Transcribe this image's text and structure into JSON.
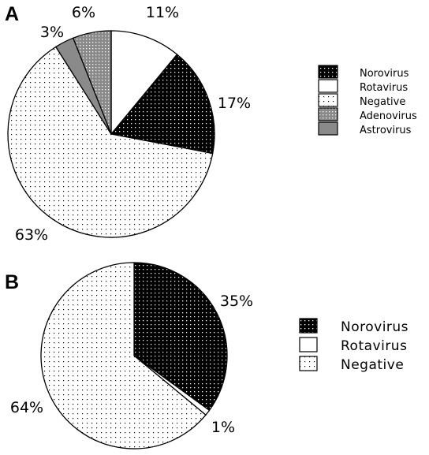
{
  "chart_data": [
    {
      "type": "pie",
      "panel": "A",
      "slices": [
        {
          "label": "Rotavirus",
          "value": 11,
          "text": "11%",
          "fill": "white"
        },
        {
          "label": "Norovirus",
          "value": 17,
          "text": "17%",
          "fill": "dots-black"
        },
        {
          "label": "Negative",
          "value": 63,
          "text": "63%",
          "fill": "dots-light"
        },
        {
          "label": "Astrovirus",
          "value": 3,
          "text": "3%",
          "fill": "solid-gray"
        },
        {
          "label": "Adenovirus",
          "value": 6,
          "text": "6%",
          "fill": "dots-gray"
        }
      ],
      "legend": [
        {
          "label": "Norovirus",
          "fill": "dots-black"
        },
        {
          "label": "Rotavirus",
          "fill": "white"
        },
        {
          "label": "Negative",
          "fill": "dots-light"
        },
        {
          "label": "Adenovirus",
          "fill": "dots-gray"
        },
        {
          "label": "Astrovirus",
          "fill": "solid-gray"
        }
      ],
      "legend_position": "right"
    },
    {
      "type": "pie",
      "panel": "B",
      "slices": [
        {
          "label": "Norovirus",
          "value": 35,
          "text": "35%",
          "fill": "dots-black"
        },
        {
          "label": "Rotavirus",
          "value": 1,
          "text": "1%",
          "fill": "white"
        },
        {
          "label": "Negative",
          "value": 64,
          "text": "64%",
          "fill": "dots-light"
        }
      ],
      "legend": [
        {
          "label": "Norovirus",
          "fill": "dots-black"
        },
        {
          "label": "Rotavirus",
          "fill": "white"
        },
        {
          "label": "Negative",
          "fill": "dots-light"
        }
      ],
      "legend_position": "right"
    }
  ],
  "colors": {
    "black": "#000000",
    "white": "#ffffff",
    "gray": "#8a8a8a"
  }
}
